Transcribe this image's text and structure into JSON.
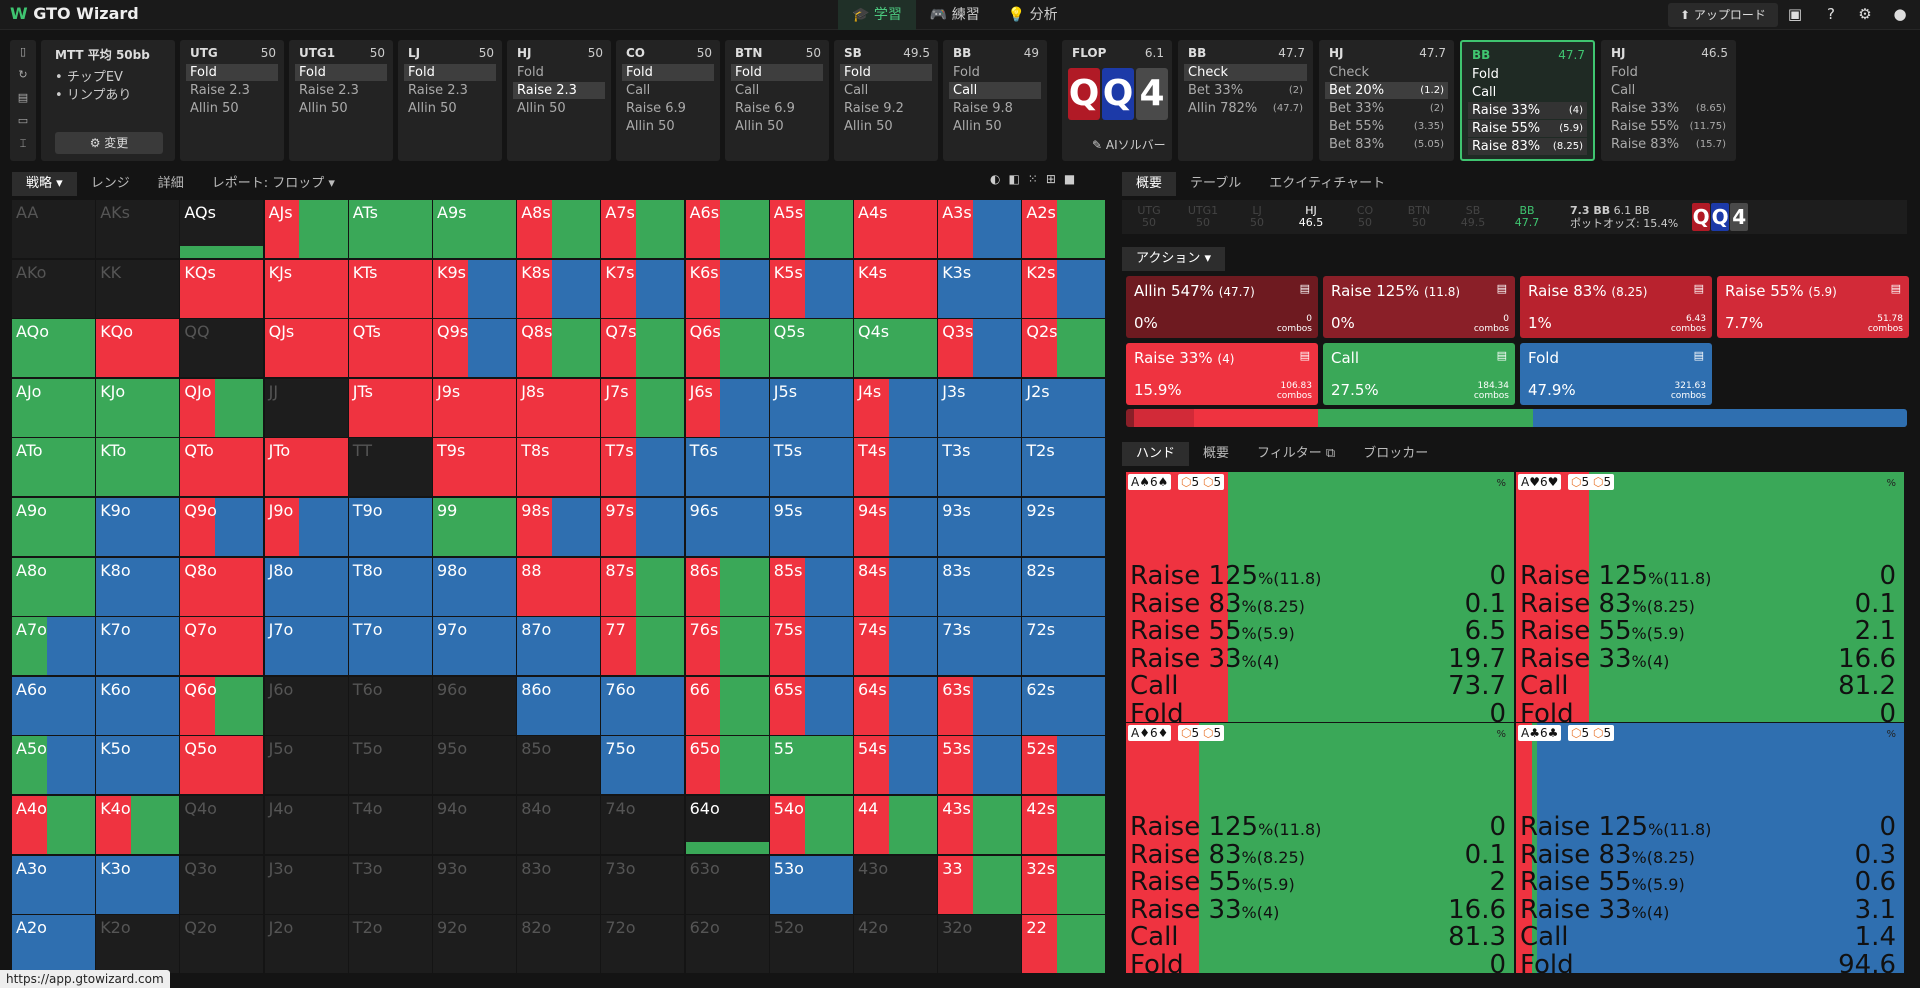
{
  "app": {
    "title": "GTO Wizard",
    "nav": [
      "学習",
      "練習",
      "分析"
    ],
    "upload": "アップロード",
    "url": "https://app.gtowizard.com"
  },
  "game": {
    "line1": "MTT 平均 50bb",
    "bullets": [
      "チップEV",
      "リンプあり"
    ],
    "change": "変更"
  },
  "positions": [
    {
      "pos": "UTG",
      "stack": "50",
      "actions": [
        "Fold",
        "Raise 2.3",
        "Allin 50"
      ],
      "sel": 0
    },
    {
      "pos": "UTG1",
      "stack": "50",
      "actions": [
        "Fold",
        "Raise 2.3",
        "Allin 50"
      ],
      "sel": 0
    },
    {
      "pos": "LJ",
      "stack": "50",
      "actions": [
        "Fold",
        "Raise 2.3",
        "Allin 50"
      ],
      "sel": 0
    },
    {
      "pos": "HJ",
      "stack": "50",
      "actions": [
        "Fold",
        "Raise 2.3",
        "Allin 50"
      ],
      "sel": 1
    },
    {
      "pos": "CO",
      "stack": "50",
      "actions": [
        "Fold",
        "Call",
        "Raise 6.9",
        "Allin 50"
      ],
      "sel": 0
    },
    {
      "pos": "BTN",
      "stack": "50",
      "actions": [
        "Fold",
        "Call",
        "Raise 6.9",
        "Allin 50"
      ],
      "sel": 0
    },
    {
      "pos": "SB",
      "stack": "49.5",
      "actions": [
        "Fold",
        "Call",
        "Raise 9.2",
        "Allin 50"
      ],
      "sel": 0
    },
    {
      "pos": "BB",
      "stack": "49",
      "actions": [
        "Fold",
        "Call",
        "Raise 9.8",
        "Allin 50"
      ],
      "sel": 1
    }
  ],
  "flop": {
    "label": "FLOP",
    "pot": "6.1",
    "cards": [
      "Q",
      "Q",
      "4"
    ],
    "ai": "AIソルバー"
  },
  "post": [
    {
      "pos": "BB",
      "stack": "47.7",
      "actions": [
        "Check",
        "Bet 33%",
        "Allin 782%"
      ],
      "sizes": [
        "",
        "(2)",
        "(47.7)"
      ],
      "sel": 0
    },
    {
      "pos": "HJ",
      "stack": "47.7",
      "actions": [
        "Check",
        "Bet 20%",
        "Bet 33%",
        "Bet 55%",
        "Bet 83%"
      ],
      "sizes": [
        "",
        "(1.2)",
        "(2)",
        "(3.35)",
        "(5.05)"
      ],
      "sel": 1
    },
    {
      "pos": "BB",
      "stack": "47.7",
      "actions": [
        "Fold",
        "Call",
        "Raise 33%",
        "Raise 55%",
        "Raise 83%"
      ],
      "sizes": [
        "",
        "",
        "(4)",
        "(5.9)",
        "(8.25)"
      ],
      "sel": -1,
      "active": true
    },
    {
      "pos": "HJ",
      "stack": "46.5",
      "actions": [
        "Fold",
        "Call",
        "Raise 33%",
        "Raise 55%",
        "Raise 83%"
      ],
      "sizes": [
        "",
        "",
        "(8.65)",
        "(11.75)",
        "(15.7)"
      ],
      "sel": -1
    }
  ],
  "left_tabs": [
    "戦略",
    "レンジ",
    "詳細",
    "レポート: フロップ"
  ],
  "right_tabs": [
    "概要",
    "テーブル",
    "エクイティチャート"
  ],
  "pos_bar": [
    {
      "p": "UTG",
      "s": "50",
      "d": true
    },
    {
      "p": "UTG1",
      "s": "50",
      "d": true
    },
    {
      "p": "LJ",
      "s": "50",
      "d": true
    },
    {
      "p": "HJ",
      "s": "46.5",
      "d": false
    },
    {
      "p": "CO",
      "s": "50",
      "d": true
    },
    {
      "p": "BTN",
      "s": "50",
      "d": true
    },
    {
      "p": "SB",
      "s": "49.5",
      "d": true
    },
    {
      "p": "BB",
      "s": "47.7",
      "d": false,
      "g": true
    }
  ],
  "pot": {
    "bb": "7.3 BB",
    "bb2": "6.1 BB",
    "odds_label": "ポットオッズ:",
    "odds": "15.4%"
  },
  "actions_label": "アクション",
  "action_boxes": [
    {
      "name": "Allin 547%",
      "size": "(47.7)",
      "pct": "0%",
      "combos": "0",
      "color": "#6e1a20"
    },
    {
      "name": "Raise 125%",
      "size": "(11.8)",
      "pct": "0%",
      "combos": "0",
      "color": "#8a1f28"
    },
    {
      "name": "Raise 83%",
      "size": "(8.25)",
      "pct": "1%",
      "combos": "6.43",
      "color": "#b8222e"
    },
    {
      "name": "Raise 55%",
      "size": "(5.9)",
      "pct": "7.7%",
      "combos": "51.78",
      "color": "#d22a38"
    },
    {
      "name": "Raise 33%",
      "size": "(4)",
      "pct": "15.9%",
      "combos": "106.83",
      "color": "#ef3340"
    },
    {
      "name": "Call",
      "size": "",
      "pct": "27.5%",
      "combos": "184.34",
      "color": "#3aa858"
    },
    {
      "name": "Fold",
      "size": "",
      "pct": "47.9%",
      "combos": "321.63",
      "color": "#2f6fb0"
    }
  ],
  "combos_word": "combos",
  "freq_bar": [
    {
      "v": 1,
      "c": "#8a1f28"
    },
    {
      "v": 7.7,
      "c": "#d22a38"
    },
    {
      "v": 15.9,
      "c": "#ef3340"
    },
    {
      "v": 27.5,
      "c": "#3aa858"
    },
    {
      "v": 47.9,
      "c": "#2f6fb0"
    }
  ],
  "hand_tabs": [
    "ハンド",
    "概要",
    "フィルター",
    "ブロッカー"
  ],
  "hands": [
    {
      "card1": "A♠6♠",
      "chips": [
        "5",
        "5"
      ],
      "lines": [
        [
          "Raise 125",
          "(11.8)",
          "0"
        ],
        [
          "Raise 83",
          "(8.25)",
          "0.1"
        ],
        [
          "Raise 55",
          "(5.9)",
          "6.5"
        ],
        [
          "Raise 33",
          "(4)",
          "19.7"
        ],
        [
          "Call",
          "",
          "73.7"
        ],
        [
          "Fold",
          "",
          "0"
        ]
      ],
      "mix": [
        {
          "v": 26.3,
          "c": "#ef3340"
        },
        {
          "v": 73.7,
          "c": "#3aa858"
        }
      ]
    },
    {
      "card1": "A♥6♥",
      "chips": [
        "5",
        "5"
      ],
      "lines": [
        [
          "Raise 125",
          "(11.8)",
          "0"
        ],
        [
          "Raise 83",
          "(8.25)",
          "0.1"
        ],
        [
          "Raise 55",
          "(5.9)",
          "2.1"
        ],
        [
          "Raise 33",
          "(4)",
          "16.6"
        ],
        [
          "Call",
          "",
          "81.2"
        ],
        [
          "Fold",
          "",
          "0"
        ]
      ],
      "mix": [
        {
          "v": 18.8,
          "c": "#ef3340"
        },
        {
          "v": 81.2,
          "c": "#3aa858"
        }
      ]
    },
    {
      "card1": "A♦6♦",
      "chips": [
        "5",
        "5"
      ],
      "lines": [
        [
          "Raise 125",
          "(11.8)",
          "0"
        ],
        [
          "Raise 83",
          "(8.25)",
          "0.1"
        ],
        [
          "Raise 55",
          "(5.9)",
          "2"
        ],
        [
          "Raise 33",
          "(4)",
          "16.6"
        ],
        [
          "Call",
          "",
          "81.3"
        ],
        [
          "Fold",
          "",
          "0"
        ]
      ],
      "mix": [
        {
          "v": 18.7,
          "c": "#ef3340"
        },
        {
          "v": 81.3,
          "c": "#3aa858"
        }
      ]
    },
    {
      "card1": "A♣6♣",
      "chips": [
        "5",
        "5"
      ],
      "lines": [
        [
          "Raise 125",
          "(11.8)",
          "0"
        ],
        [
          "Raise 83",
          "(8.25)",
          "0.3"
        ],
        [
          "Raise 55",
          "(5.9)",
          "0.6"
        ],
        [
          "Raise 33",
          "(4)",
          "3.1"
        ],
        [
          "Call",
          "",
          "1.4"
        ],
        [
          "Fold",
          "",
          "94.6"
        ]
      ],
      "mix": [
        {
          "v": 4,
          "c": "#ef3340"
        },
        {
          "v": 1.4,
          "c": "#3aa858"
        },
        {
          "v": 94.6,
          "c": "#2f6fb0"
        }
      ]
    }
  ],
  "ranks": [
    "A",
    "K",
    "Q",
    "J",
    "T",
    "9",
    "8",
    "7",
    "6",
    "5",
    "4",
    "3",
    "2"
  ],
  "matrix": [
    [
      "d",
      "d",
      "w",
      "rg",
      "g",
      "g",
      "rg",
      "rg",
      "rg",
      "rg",
      "r",
      "rb",
      "rg"
    ],
    [
      "d",
      "d",
      "r",
      "r",
      "r",
      "rb",
      "rb",
      "rb",
      "rb",
      "rb",
      "r",
      "b",
      "rb"
    ],
    [
      "g",
      "r",
      "d",
      "r",
      "r",
      "rb",
      "rg",
      "rg",
      "rg",
      "g",
      "g",
      "rb",
      "rg"
    ],
    [
      "g",
      "g",
      "rg",
      "d",
      "r",
      "r",
      "r",
      "rg",
      "rb",
      "b",
      "rb",
      "b",
      "b"
    ],
    [
      "g",
      "g",
      "r",
      "r",
      "d",
      "r",
      "r",
      "rb",
      "b",
      "b",
      "rb",
      "b",
      "b"
    ],
    [
      "g",
      "b",
      "rb",
      "rb",
      "b",
      "g",
      "rb",
      "rb",
      "b",
      "b",
      "rb",
      "b",
      "b"
    ],
    [
      "g",
      "b",
      "r",
      "b",
      "b",
      "b",
      "r",
      "rg",
      "rg",
      "rb",
      "rb",
      "b",
      "b"
    ],
    [
      "gb",
      "b",
      "r",
      "b",
      "b",
      "b",
      "b",
      "rg",
      "rg",
      "rb",
      "rb",
      "b",
      "b"
    ],
    [
      "b",
      "b",
      "rg",
      "d",
      "d",
      "d",
      "b",
      "b",
      "rg",
      "rb",
      "rb",
      "rb",
      "b"
    ],
    [
      "gb",
      "b",
      "r",
      "d",
      "d",
      "d",
      "d",
      "b",
      "rg",
      "g",
      "rb",
      "rb",
      "rb"
    ],
    [
      "rg",
      "rg",
      "d",
      "d",
      "d",
      "d",
      "d",
      "d",
      "w",
      "rg",
      "rg",
      "rg",
      "rg"
    ],
    [
      "b",
      "b",
      "d",
      "d",
      "d",
      "d",
      "d",
      "d",
      "d",
      "b",
      "d",
      "rg",
      "rg"
    ],
    [
      "b",
      "d",
      "d",
      "d",
      "d",
      "d",
      "d",
      "d",
      "d",
      "d",
      "d",
      "d",
      "rg"
    ]
  ]
}
